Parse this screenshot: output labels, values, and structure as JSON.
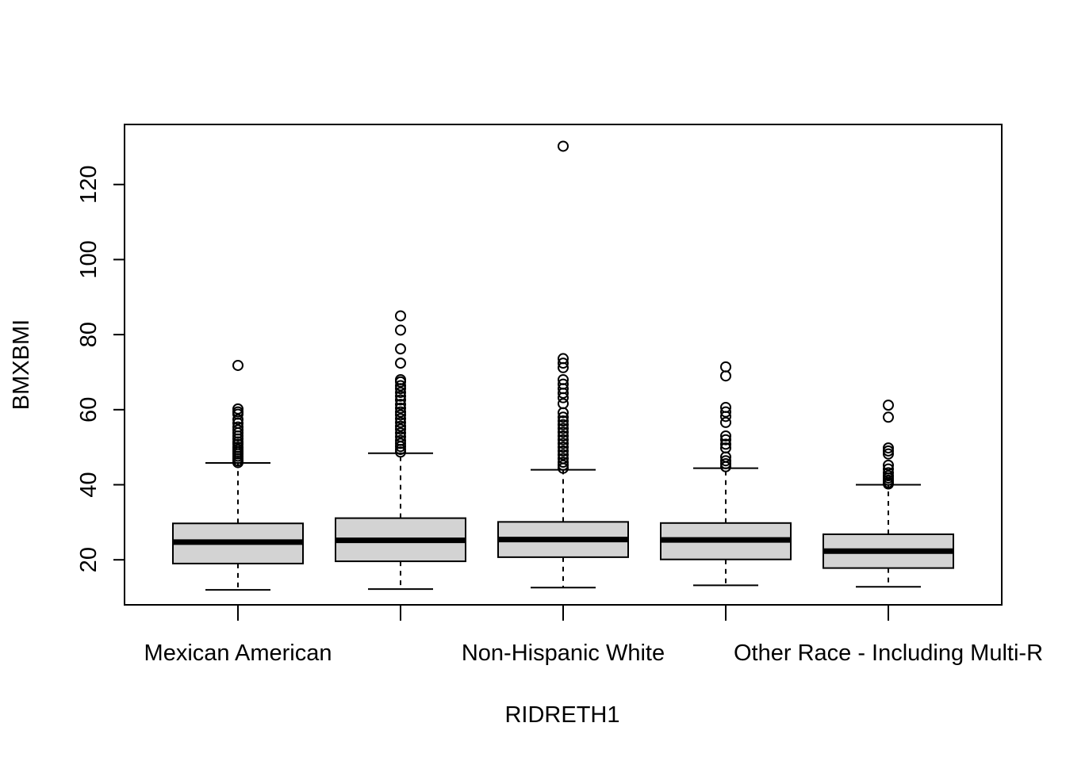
{
  "chart_data": {
    "type": "boxplot",
    "title": "",
    "xlabel": "RIDRETH1",
    "ylabel": "BMXBMI",
    "ylim": [
      8,
      136
    ],
    "yticks": [
      20,
      40,
      60,
      80,
      100,
      120
    ],
    "grid": false,
    "legend": "none",
    "box_fill": "#d3d3d3",
    "categories": [
      "Mexican American",
      "",
      "Non-Hispanic White",
      "",
      "Other Race - Including Multi-R"
    ],
    "boxes": [
      {
        "min": 12.0,
        "q1": 19.0,
        "median": 24.7,
        "q3": 29.7,
        "max": 45.8,
        "outliers": [
          71.8,
          60.2,
          59.4,
          58.8,
          57.4,
          56.4,
          55.4,
          54.6,
          53.8,
          53.0,
          52.2,
          51.4,
          50.8,
          50.0,
          49.4,
          48.8,
          48.2,
          47.6,
          47.0,
          46.4,
          45.9
        ]
      },
      {
        "min": 12.2,
        "q1": 19.6,
        "median": 25.2,
        "q3": 31.1,
        "max": 48.4,
        "outliers": [
          85.0,
          81.2,
          76.2,
          72.4,
          68.0,
          67.4,
          66.4,
          65.6,
          64.6,
          63.6,
          62.6,
          61.4,
          60.4,
          59.4,
          58.6,
          57.6,
          56.6,
          55.6,
          54.8,
          53.8,
          52.8,
          51.8,
          51.0,
          50.2,
          49.4,
          48.7
        ]
      },
      {
        "min": 12.6,
        "q1": 20.7,
        "median": 25.4,
        "q3": 30.1,
        "max": 44.0,
        "outliers": [
          130.2,
          73.6,
          72.4,
          71.2,
          68.0,
          66.8,
          65.6,
          64.4,
          63.2,
          61.6,
          59.2,
          58.0,
          57.0,
          56.0,
          55.0,
          54.0,
          53.0,
          52.0,
          51.0,
          50.0,
          49.0,
          48.0,
          47.0,
          46.0,
          45.2,
          44.4
        ]
      },
      {
        "min": 13.2,
        "q1": 20.1,
        "median": 25.3,
        "q3": 29.8,
        "max": 44.4,
        "outliers": [
          71.4,
          69.0,
          60.6,
          59.4,
          58.2,
          56.6,
          53.0,
          52.0,
          50.8,
          49.8,
          47.4,
          46.4,
          45.6,
          44.8
        ]
      },
      {
        "min": 12.8,
        "q1": 17.8,
        "median": 22.3,
        "q3": 26.8,
        "max": 40.0,
        "outliers": [
          61.2,
          58.0,
          49.8,
          49.0,
          48.2,
          45.2,
          44.2,
          43.2,
          42.4,
          41.8,
          41.2,
          40.6,
          40.2
        ]
      }
    ]
  }
}
